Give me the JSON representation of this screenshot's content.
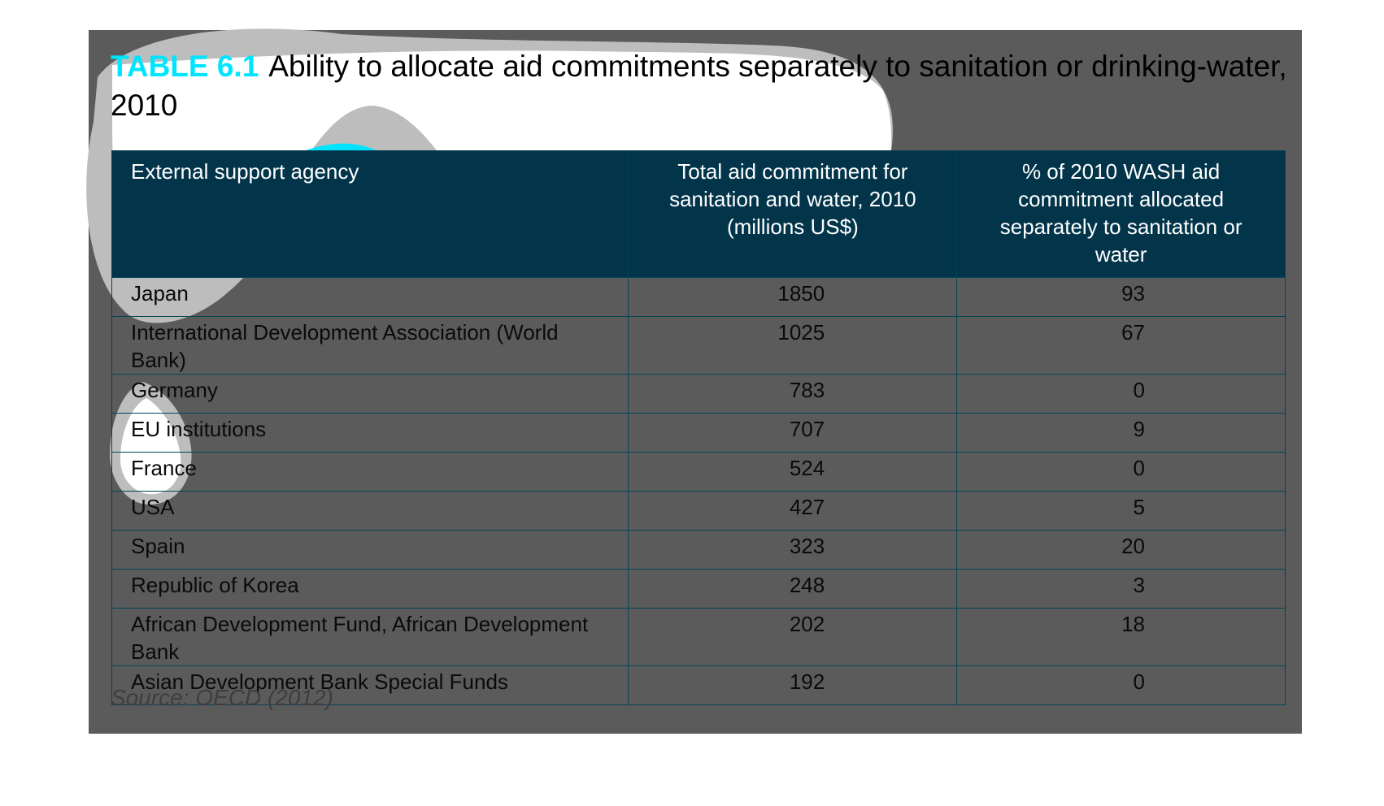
{
  "title": {
    "number": "TABLE 6.1",
    "text": "Ability to allocate aid commitments separately to sanitation or drinking-water, 2010"
  },
  "table": {
    "headers": [
      "External support agency",
      "Total aid commitment for sanitation and water, 2010 (millions US$)",
      "% of 2010 WASH aid commitment allocated separately to sanitation or water"
    ],
    "rows": [
      {
        "agency": "Japan",
        "total": "1850",
        "pct": "93"
      },
      {
        "agency": "International Development Association (World Bank)",
        "total": "1025",
        "pct": "67"
      },
      {
        "agency": "Germany",
        "total": "783",
        "pct": "0"
      },
      {
        "agency": "EU institutions",
        "total": "707",
        "pct": "9"
      },
      {
        "agency": "France",
        "total": "524",
        "pct": "0"
      },
      {
        "agency": "USA",
        "total": "427",
        "pct": "5"
      },
      {
        "agency": "Spain",
        "total": "323",
        "pct": "20"
      },
      {
        "agency": "Republic of Korea",
        "total": "248",
        "pct": "3"
      },
      {
        "agency": "African Development Fund, African Development Bank",
        "total": "202",
        "pct": "18"
      },
      {
        "agency": "Asian Development Bank Special Funds",
        "total": "192",
        "pct": "0"
      }
    ]
  },
  "source": "Source: OECD (2012)",
  "colors": {
    "accent": "#00e5ff",
    "header_bg": "#02344a",
    "panel_bg": "#5b5b5b"
  }
}
